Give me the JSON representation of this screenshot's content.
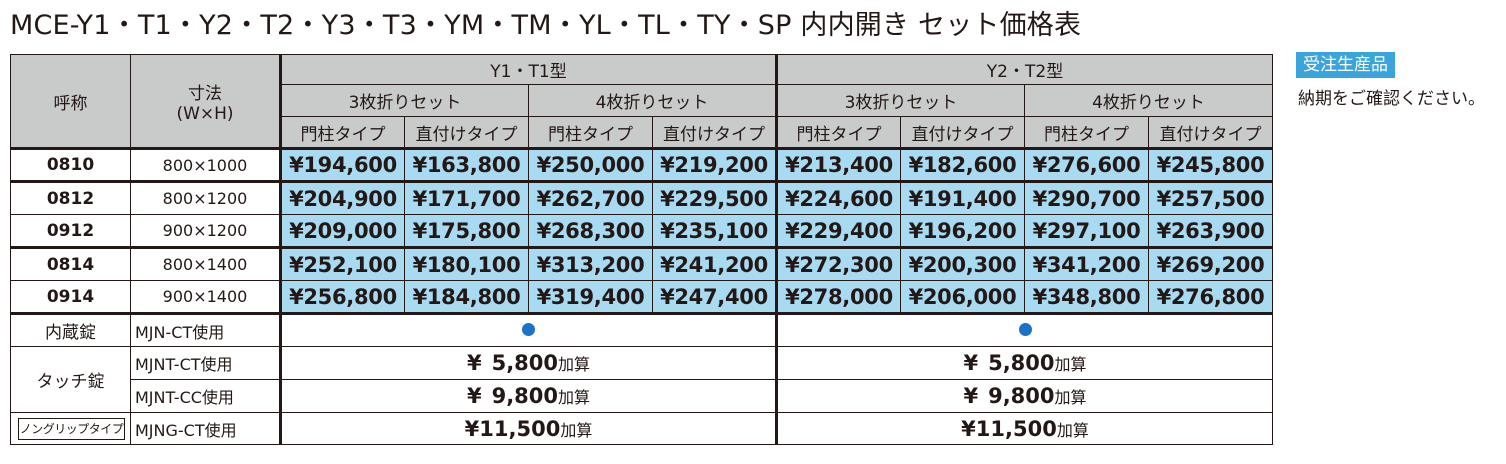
{
  "title": "MCE-Y1・T1・Y2・T2・Y3・T3・YM・TM・YL・TL・TY・SP 内内開き セット価格表",
  "badge": "受注生産品",
  "note": "納期をご確認ください。",
  "header": {
    "name": "呼称",
    "size_l1": "寸法",
    "size_l2": "(W×H)",
    "groups": [
      "Y1・T1型",
      "Y2・T2型"
    ],
    "sets": [
      "3枚折りセット",
      "4枚折りセット",
      "3枚折りセット",
      "4枚折りセット"
    ],
    "types": [
      "門柱タイプ",
      "直付けタイプ",
      "門柱タイプ",
      "直付けタイプ",
      "門柱タイプ",
      "直付けタイプ",
      "門柱タイプ",
      "直付けタイプ"
    ]
  },
  "rows": [
    {
      "code": "0810",
      "size": "800×1000",
      "prices": [
        "¥194,600",
        "¥163,800",
        "¥250,000",
        "¥219,200",
        "¥213,400",
        "¥182,600",
        "¥276,600",
        "¥245,800"
      ]
    },
    {
      "code": "0812",
      "size": "800×1200",
      "prices": [
        "¥204,900",
        "¥171,700",
        "¥262,700",
        "¥229,500",
        "¥224,600",
        "¥191,400",
        "¥290,700",
        "¥257,500"
      ]
    },
    {
      "code": "0912",
      "size": "900×1200",
      "prices": [
        "¥209,000",
        "¥175,800",
        "¥268,300",
        "¥235,100",
        "¥229,400",
        "¥196,200",
        "¥297,100",
        "¥263,900"
      ]
    },
    {
      "code": "0814",
      "size": "800×1400",
      "prices": [
        "¥252,100",
        "¥180,100",
        "¥313,200",
        "¥241,200",
        "¥272,300",
        "¥200,300",
        "¥341,200",
        "¥269,200"
      ]
    },
    {
      "code": "0914",
      "size": "900×1400",
      "prices": [
        "¥256,800",
        "¥184,800",
        "¥319,400",
        "¥247,400",
        "¥278,000",
        "¥206,000",
        "¥348,800",
        "¥276,800"
      ]
    }
  ],
  "options": {
    "builtin_lock": {
      "label": "内蔵錠",
      "model": "MJN-CT使用"
    },
    "touch_lock": {
      "label": "タッチ錠",
      "rows": [
        {
          "model": "MJNT-CT使用",
          "yen": "¥",
          "amount": "5,800",
          "suffix": "加算"
        },
        {
          "model": "MJNT-CC使用",
          "yen": "¥",
          "amount": "9,800",
          "suffix": "加算"
        }
      ]
    },
    "nongrip": {
      "label": "ノングリップタイプ",
      "model": "MJNG-CT使用",
      "amount": "¥11,500",
      "suffix": "加算"
    }
  },
  "colors": {
    "price_bg": "#a8daf1",
    "header_bg": "#c9caca",
    "badge_bg": "#3aa5dc",
    "dot": "#1a73c7"
  }
}
